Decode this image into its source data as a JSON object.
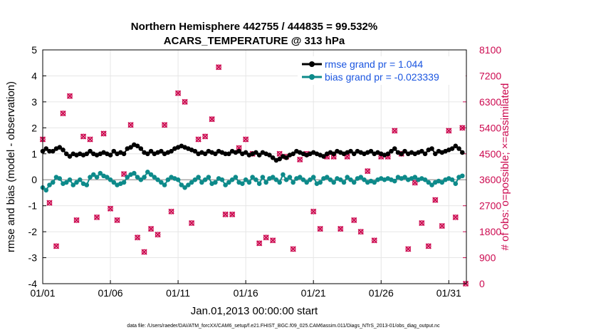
{
  "chart_data": {
    "type": "line",
    "title": [
      "Northern Hemisphere 442755 / 444835 = 99.532%",
      "ACARS_TEMPERATURE @ 313 hPa"
    ],
    "xlabel": "Jan.01,2013 00:00:00 start",
    "ylabel": "rmse and bias (model - observation)",
    "y2label": "# of obs: o=possible; ×=assimilated",
    "xlim": [
      0,
      31.3
    ],
    "ylim": [
      -4,
      5
    ],
    "y2lim": [
      0,
      8100
    ],
    "x_ticks": [
      0,
      5,
      10,
      15,
      20,
      25,
      30
    ],
    "x_tick_labels": [
      "01/01",
      "01/06",
      "01/11",
      "01/16",
      "01/21",
      "01/26",
      "01/31"
    ],
    "y_ticks": [
      -4,
      -3,
      -2,
      -1,
      0,
      1,
      2,
      3,
      4,
      5
    ],
    "y2_ticks": [
      0,
      900,
      1800,
      2700,
      3600,
      4500,
      5400,
      6300,
      7200,
      8100
    ],
    "legend": [
      "rmse grand pr = 1.044",
      "bias grand pr = -0.023339"
    ],
    "legend_position": "top-right",
    "footnote": "data file: /Users/raeder/DAI/ATM_forcXX/CAM6_setup/f.e21.FHIST_BGC.f09_025.CAM6assim.011/Diags_NTrS_2013-01/obs_diag_output.nc",
    "colors": {
      "rmse": "#000000",
      "bias": "#0d8a8a",
      "obs": "#cc0a50",
      "zero_line": "#aaaaaa"
    },
    "series": [
      {
        "name": "rmse",
        "x": [
          0.0,
          0.25,
          0.5,
          0.75,
          1.0,
          1.25,
          1.5,
          1.75,
          2.0,
          2.25,
          2.5,
          2.75,
          3.0,
          3.25,
          3.5,
          3.75,
          4.0,
          4.25,
          4.5,
          4.75,
          5.0,
          5.25,
          5.5,
          5.75,
          6.0,
          6.25,
          6.5,
          6.75,
          7.0,
          7.25,
          7.5,
          7.75,
          8.0,
          8.25,
          8.5,
          8.75,
          9.0,
          9.25,
          9.5,
          9.75,
          10.0,
          10.25,
          10.5,
          10.75,
          11.0,
          11.25,
          11.5,
          11.75,
          12.0,
          12.25,
          12.5,
          12.75,
          13.0,
          13.25,
          13.5,
          13.75,
          14.0,
          14.25,
          14.5,
          14.75,
          15.0,
          15.25,
          15.5,
          15.75,
          16.0,
          16.25,
          16.5,
          16.75,
          17.0,
          17.25,
          17.5,
          17.75,
          18.0,
          18.25,
          18.5,
          18.75,
          19.0,
          19.25,
          19.5,
          19.75,
          20.0,
          20.25,
          20.5,
          20.75,
          21.0,
          21.25,
          21.5,
          21.75,
          22.0,
          22.25,
          22.5,
          22.75,
          23.0,
          23.25,
          23.5,
          23.75,
          24.0,
          24.25,
          24.5,
          24.75,
          25.0,
          25.25,
          25.5,
          25.75,
          26.0,
          26.25,
          26.5,
          26.75,
          27.0,
          27.25,
          27.5,
          27.75,
          28.0,
          28.25,
          28.5,
          28.75,
          29.0,
          29.25,
          29.5,
          29.75,
          30.0,
          30.25,
          30.5,
          30.75,
          31.0
        ],
        "values": [
          1.1,
          1.2,
          1.1,
          1.1,
          1.2,
          1.25,
          1.15,
          1.0,
          0.9,
          1.0,
          0.95,
          1.0,
          0.95,
          1.0,
          1.1,
          1.0,
          0.95,
          1.0,
          1.05,
          1.0,
          0.95,
          1.1,
          1.0,
          1.05,
          1.0,
          1.2,
          1.25,
          1.35,
          1.3,
          1.2,
          1.05,
          1.0,
          1.1,
          1.0,
          1.05,
          1.1,
          1.0,
          1.05,
          1.1,
          1.2,
          1.25,
          1.3,
          1.25,
          1.2,
          1.15,
          1.1,
          1.0,
          1.05,
          1.0,
          1.1,
          1.05,
          1.0,
          1.1,
          1.05,
          1.0,
          1.0,
          1.1,
          1.05,
          1.1,
          1.0,
          1.05,
          0.95,
          1.0,
          1.05,
          0.95,
          1.05,
          1.0,
          0.95,
          0.85,
          0.75,
          0.8,
          0.9,
          0.85,
          0.95,
          1.0,
          1.1,
          1.05,
          1.0,
          0.95,
          1.0,
          1.05,
          1.0,
          0.95,
          0.9,
          1.0,
          1.05,
          1.0,
          1.1,
          1.05,
          1.0,
          1.05,
          1.1,
          1.0,
          1.1,
          1.05,
          1.0,
          1.05,
          1.1,
          1.0,
          1.05,
          1.0,
          0.95,
          1.0,
          1.1,
          1.2,
          1.05,
          1.0,
          1.1,
          1.0,
          1.05,
          1.0,
          1.05,
          1.1,
          1.0,
          1.15,
          1.2,
          1.0,
          1.1,
          1.05,
          1.1,
          1.15,
          1.2,
          1.3,
          1.2,
          1.05
        ]
      },
      {
        "name": "bias",
        "x": [
          0.0,
          0.25,
          0.5,
          0.75,
          1.0,
          1.25,
          1.5,
          1.75,
          2.0,
          2.25,
          2.5,
          2.75,
          3.0,
          3.25,
          3.5,
          3.75,
          4.0,
          4.25,
          4.5,
          4.75,
          5.0,
          5.25,
          5.5,
          5.75,
          6.0,
          6.25,
          6.5,
          6.75,
          7.0,
          7.25,
          7.5,
          7.75,
          8.0,
          8.25,
          8.5,
          8.75,
          9.0,
          9.25,
          9.5,
          9.75,
          10.0,
          10.25,
          10.5,
          10.75,
          11.0,
          11.25,
          11.5,
          11.75,
          12.0,
          12.25,
          12.5,
          12.75,
          13.0,
          13.25,
          13.5,
          13.75,
          14.0,
          14.25,
          14.5,
          14.75,
          15.0,
          15.25,
          15.5,
          15.75,
          16.0,
          16.25,
          16.5,
          16.75,
          17.0,
          17.25,
          17.5,
          17.75,
          18.0,
          18.25,
          18.5,
          18.75,
          19.0,
          19.25,
          19.5,
          19.75,
          20.0,
          20.25,
          20.5,
          20.75,
          21.0,
          21.25,
          21.5,
          21.75,
          22.0,
          22.25,
          22.5,
          22.75,
          23.0,
          23.25,
          23.5,
          23.75,
          24.0,
          24.25,
          24.5,
          24.75,
          25.0,
          25.25,
          25.5,
          25.75,
          26.0,
          26.25,
          26.5,
          26.75,
          27.0,
          27.25,
          27.5,
          27.75,
          28.0,
          28.25,
          28.5,
          28.75,
          29.0,
          29.25,
          29.5,
          29.75,
          30.0,
          30.25,
          30.5,
          30.75,
          31.0
        ],
        "values": [
          -0.3,
          -0.4,
          -0.2,
          -0.1,
          0.1,
          0.05,
          -0.15,
          -0.1,
          0.0,
          -0.2,
          -0.1,
          0.0,
          -0.15,
          -0.2,
          0.1,
          0.2,
          0.1,
          0.25,
          0.15,
          0.1,
          0.0,
          -0.1,
          -0.2,
          -0.15,
          -0.1,
          0.1,
          0.2,
          0.25,
          0.1,
          0.0,
          0.1,
          0.3,
          0.2,
          0.1,
          0.0,
          -0.1,
          -0.2,
          0.0,
          0.1,
          0.05,
          0.0,
          -0.2,
          -0.3,
          -0.2,
          -0.1,
          0.0,
          0.1,
          -0.1,
          0.0,
          0.1,
          -0.15,
          -0.1,
          0.05,
          0.0,
          -0.2,
          -0.1,
          0.0,
          0.1,
          -0.1,
          -0.15,
          0.0,
          -0.1,
          0.1,
          0.0,
          -0.15,
          0.1,
          -0.1,
          0.05,
          0.1,
          0.0,
          -0.1,
          0.2,
          0.0,
          0.1,
          -0.1,
          0.05,
          0.1,
          0.0,
          -0.1,
          0.0,
          0.1,
          -0.15,
          -0.1,
          0.05,
          0.1,
          0.0,
          -0.1,
          0.05,
          0.0,
          -0.1,
          0.1,
          0.0,
          -0.1,
          0.05,
          0.1,
          0.0,
          -0.1,
          -0.05,
          -0.1,
          0.0,
          0.05,
          0.0,
          0.05,
          0.0,
          -0.05,
          0.1,
          0.05,
          0.1,
          0.0,
          0.05,
          0.1,
          0.0,
          0.05,
          0.0,
          -0.1,
          -0.2,
          -0.1,
          -0.05,
          -0.1,
          0.0,
          0.05,
          0.0,
          -0.15,
          0.1,
          0.15
        ]
      },
      {
        "name": "obs_count",
        "axis": "right",
        "marker": "× over o",
        "x": [
          0.0,
          0.5,
          1.0,
          1.5,
          2.0,
          2.5,
          3.0,
          3.5,
          4.0,
          4.5,
          5.0,
          5.5,
          6.0,
          6.5,
          7.0,
          7.5,
          8.0,
          8.5,
          9.0,
          9.5,
          10.0,
          10.5,
          11.0,
          11.5,
          12.0,
          12.5,
          13.0,
          13.5,
          14.0,
          14.5,
          15.0,
          15.5,
          16.0,
          16.5,
          17.0,
          17.5,
          18.0,
          18.5,
          19.0,
          19.5,
          20.0,
          20.5,
          21.0,
          21.5,
          22.0,
          22.5,
          23.0,
          23.5,
          24.0,
          24.5,
          25.0,
          25.5,
          26.0,
          26.5,
          27.0,
          27.5,
          28.0,
          28.5,
          29.0,
          29.5,
          30.0,
          30.5,
          31.0,
          31.25
        ],
        "values": [
          5000,
          2800,
          1300,
          5900,
          6500,
          2200,
          5100,
          5000,
          2300,
          5200,
          2600,
          2200,
          3800,
          5500,
          1600,
          1100,
          1900,
          1700,
          5500,
          2500,
          6600,
          6300,
          2100,
          5000,
          5100,
          5700,
          7500,
          2400,
          2400,
          4700,
          5000,
          4500,
          1400,
          1600,
          1500,
          4500,
          4400,
          1200,
          4300,
          4500,
          2500,
          1900,
          4400,
          4400,
          1900,
          4400,
          2200,
          1800,
          3900,
          1500,
          4400,
          4400,
          5300,
          4500,
          1200,
          3500,
          2100,
          1300,
          2900,
          2000,
          5300,
          2300,
          5400,
          0
        ]
      }
    ]
  }
}
